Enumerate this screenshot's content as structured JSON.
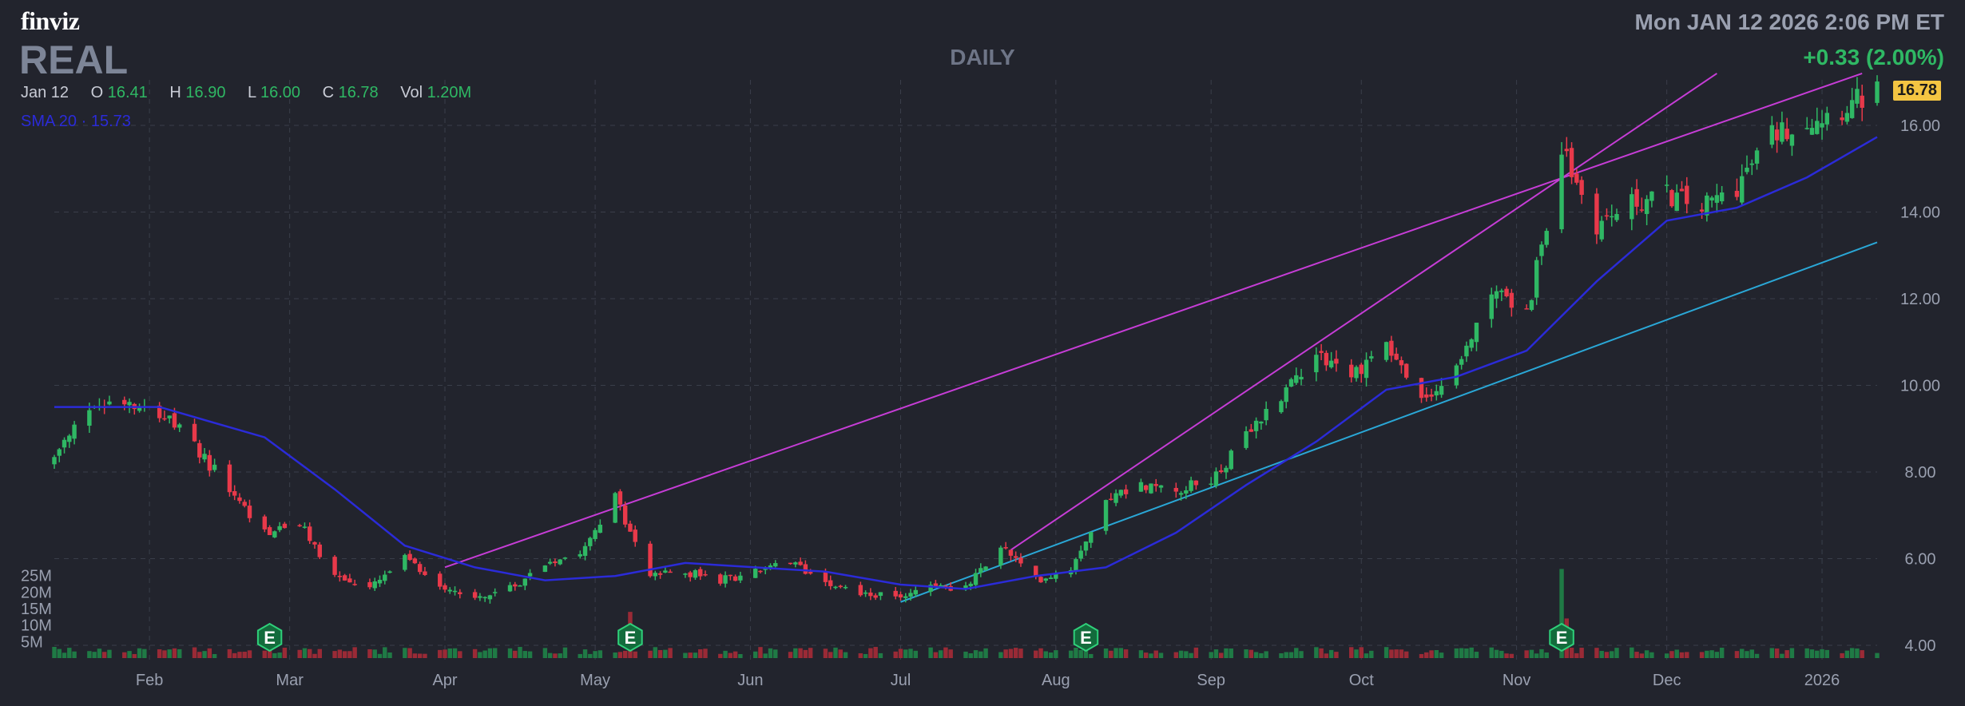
{
  "header": {
    "logo": "finviz",
    "ticker": "REAL",
    "timeframe": "DAILY",
    "datetime": "Mon JAN 12 2026 2:06 PM ET",
    "change": "+0.33 (2.00%)",
    "ohlc": {
      "date": "Jan 12",
      "o_label": "O",
      "o": "16.41",
      "h_label": "H",
      "h": "16.90",
      "l_label": "L",
      "l": "16.00",
      "c_label": "C",
      "c": "16.78",
      "vol_label": "Vol",
      "vol": "1.20M"
    },
    "sma_legend": {
      "label": "SMA 20",
      "sep": "·",
      "value": "15.73"
    },
    "last_price": "16.78"
  },
  "colors": {
    "background": "#22242d",
    "up": "#2fb864",
    "down": "#e8394a",
    "sma": "#2b2bd8",
    "trend_magenta": "#c63dd6",
    "trend_cyan": "#2aa7d6",
    "grid": "#3a3e4a",
    "tag": "#f4c542"
  },
  "chart_data": {
    "type": "candlestick",
    "title": "REAL",
    "timeframe": "DAILY",
    "date_range": [
      "2025-01-13",
      "2026-01-12"
    ],
    "y_ticks": [
      "16.00",
      "14.00",
      "12.00",
      "10.00",
      "8.00",
      "6.00",
      "4.00"
    ],
    "ylim": [
      3.8,
      17.2
    ],
    "x_ticks": [
      "Feb",
      "Mar",
      "Apr",
      "May",
      "Jun",
      "Jul",
      "Aug",
      "Sep",
      "Oct",
      "Nov",
      "Dec",
      "2026"
    ],
    "volume_ticks": [
      "25M",
      "20M",
      "15M",
      "10M",
      "5M"
    ],
    "volume_max": 30,
    "price_anchors": [
      [
        "2025-01-13",
        8.3
      ],
      [
        "2025-01-20",
        9.5
      ],
      [
        "2025-01-27",
        9.7
      ],
      [
        "2025-02-03",
        9.4
      ],
      [
        "2025-02-10",
        8.6
      ],
      [
        "2025-02-17",
        7.6
      ],
      [
        "2025-02-24",
        6.6
      ],
      [
        "2025-03-03",
        6.8
      ],
      [
        "2025-03-10",
        5.6
      ],
      [
        "2025-03-17",
        5.3
      ],
      [
        "2025-03-24",
        6.0
      ],
      [
        "2025-03-31",
        5.4
      ],
      [
        "2025-04-07",
        5.1
      ],
      [
        "2025-04-14",
        5.3
      ],
      [
        "2025-04-21",
        5.9
      ],
      [
        "2025-04-28",
        6.2
      ],
      [
        "2025-05-05",
        7.4
      ],
      [
        "2025-05-12",
        5.6
      ],
      [
        "2025-05-19",
        5.7
      ],
      [
        "2025-05-26",
        5.5
      ],
      [
        "2025-06-02",
        5.7
      ],
      [
        "2025-06-09",
        5.9
      ],
      [
        "2025-06-16",
        5.5
      ],
      [
        "2025-06-23",
        5.2
      ],
      [
        "2025-06-30",
        5.1
      ],
      [
        "2025-07-07",
        5.4
      ],
      [
        "2025-07-14",
        5.3
      ],
      [
        "2025-07-21",
        6.3
      ],
      [
        "2025-07-28",
        5.5
      ],
      [
        "2025-08-04",
        5.8
      ],
      [
        "2025-08-11",
        7.4
      ],
      [
        "2025-08-18",
        7.7
      ],
      [
        "2025-08-25",
        7.6
      ],
      [
        "2025-09-01",
        7.8
      ],
      [
        "2025-09-08",
        8.8
      ],
      [
        "2025-09-15",
        9.8
      ],
      [
        "2025-09-22",
        10.8
      ],
      [
        "2025-09-29",
        10.2
      ],
      [
        "2025-10-06",
        11.0
      ],
      [
        "2025-10-13",
        9.6
      ],
      [
        "2025-10-20",
        10.3
      ],
      [
        "2025-10-27",
        12.3
      ],
      [
        "2025-11-03",
        11.6
      ],
      [
        "2025-11-10",
        15.4
      ],
      [
        "2025-11-17",
        13.7
      ],
      [
        "2025-11-24",
        14.2
      ],
      [
        "2025-12-01",
        14.4
      ],
      [
        "2025-12-08",
        14.1
      ],
      [
        "2025-12-15",
        14.6
      ],
      [
        "2025-12-22",
        15.8
      ],
      [
        "2025-12-29",
        16.1
      ],
      [
        "2026-01-05",
        16.4
      ],
      [
        "2026-01-12",
        16.78
      ]
    ],
    "sma": {
      "name": "SMA 20",
      "points": [
        [
          "2025-01-13",
          9.5
        ],
        [
          "2025-02-03",
          9.5
        ],
        [
          "2025-02-24",
          8.8
        ],
        [
          "2025-03-10",
          7.6
        ],
        [
          "2025-03-24",
          6.3
        ],
        [
          "2025-04-07",
          5.8
        ],
        [
          "2025-04-21",
          5.5
        ],
        [
          "2025-05-05",
          5.6
        ],
        [
          "2025-05-19",
          5.9
        ],
        [
          "2025-06-02",
          5.8
        ],
        [
          "2025-06-16",
          5.7
        ],
        [
          "2025-07-01",
          5.4
        ],
        [
          "2025-07-14",
          5.3
        ],
        [
          "2025-07-28",
          5.6
        ],
        [
          "2025-08-11",
          5.8
        ],
        [
          "2025-08-25",
          6.6
        ],
        [
          "2025-09-08",
          7.7
        ],
        [
          "2025-09-22",
          8.7
        ],
        [
          "2025-10-06",
          9.9
        ],
        [
          "2025-10-20",
          10.2
        ],
        [
          "2025-11-03",
          10.8
        ],
        [
          "2025-11-17",
          12.4
        ],
        [
          "2025-12-01",
          13.8
        ],
        [
          "2025-12-15",
          14.1
        ],
        [
          "2025-12-29",
          14.8
        ],
        [
          "2026-01-12",
          15.73
        ]
      ]
    },
    "trendlines": [
      {
        "color": "magenta",
        "from": [
          "2025-04-01",
          5.8
        ],
        "to": [
          "2026-01-09",
          17.2
        ]
      },
      {
        "color": "magenta",
        "from": [
          "2025-07-23",
          6.2
        ],
        "to": [
          "2025-12-11",
          17.2
        ]
      },
      {
        "color": "cyan",
        "from": [
          "2025-07-01",
          5.0
        ],
        "to": [
          "2026-01-12",
          13.3
        ]
      }
    ],
    "earnings": [
      {
        "date": "2025-02-25",
        "label": "E"
      },
      {
        "date": "2025-05-08",
        "label": "E"
      },
      {
        "date": "2025-08-07",
        "label": "E"
      },
      {
        "date": "2025-11-10",
        "label": "E"
      }
    ],
    "volume_spikes": [
      [
        "2025-05-08",
        14
      ],
      [
        "2025-08-07",
        8
      ],
      [
        "2025-11-10",
        27
      ],
      [
        "2025-11-11",
        12
      ]
    ]
  }
}
